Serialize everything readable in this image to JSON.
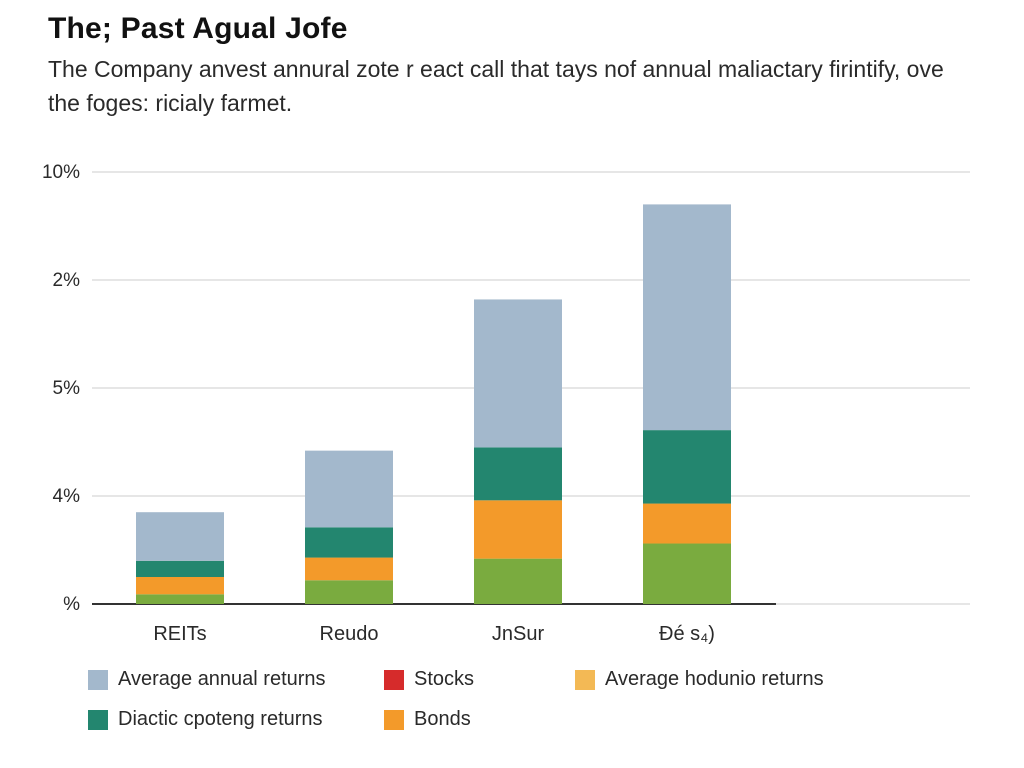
{
  "title": "The; Past Agual Jofe",
  "subtitle": "The Company anvest annural zote r eact call that tays nof annual maliactary firintify, ove the foges: ricialy farmet.",
  "colors": {
    "avg_annual": "#a3b8cc",
    "stocks": "#d62b2b",
    "avg_hodunio": "#f3b955",
    "diactic": "#23866f",
    "bonds": "#f39a2a",
    "base_green": "#7aab3f",
    "grid": "#dddddd",
    "axis": "#333333"
  },
  "legend": [
    {
      "label": "Average annual returns",
      "color_key": "avg_annual"
    },
    {
      "label": "Stocks",
      "color_key": "stocks"
    },
    {
      "label": "Average hodunio returns",
      "color_key": "avg_hodunio"
    },
    {
      "label": "Diactic cpoteng returns",
      "color_key": "diactic"
    },
    {
      "label": "Bonds",
      "color_key": "bonds"
    }
  ],
  "chart_data": {
    "type": "bar",
    "stacked": true,
    "title": "The; Past Agual Jofe",
    "y_tick_labels": [
      "%",
      "4%",
      "5%",
      "2%",
      "10%"
    ],
    "ylim": [
      0,
      4
    ],
    "grid": true,
    "categories": [
      "REITs",
      "Reudo",
      "JnSur",
      "Ðé s₄)"
    ],
    "series": [
      {
        "color_key": "base_green",
        "values": [
          0.09,
          0.22,
          0.42,
          0.56
        ]
      },
      {
        "color_key": "bonds",
        "values": [
          0.16,
          0.21,
          0.54,
          0.37
        ]
      },
      {
        "name": "Diactic cpoteng returns",
        "color_key": "diactic",
        "values": [
          0.15,
          0.28,
          0.49,
          0.68
        ]
      },
      {
        "name": "Average annual returns",
        "color_key": "avg_annual",
        "values": [
          0.45,
          0.71,
          1.37,
          2.09
        ]
      }
    ],
    "legend_position": "bottom"
  }
}
